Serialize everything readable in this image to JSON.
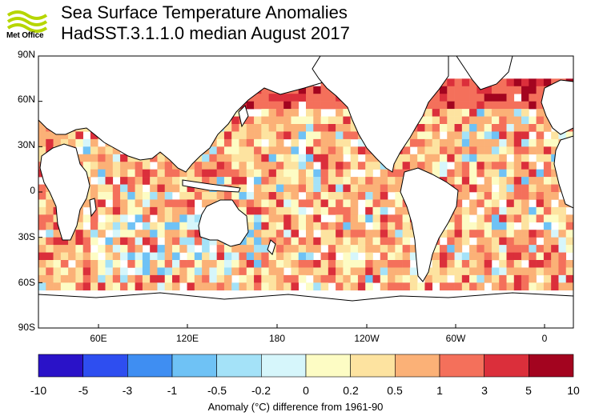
{
  "header": {
    "logo_text": "Met Office",
    "title": "Sea Surface Temperature Anomalies",
    "subtitle": "HadSST.3.1.1.0 median August 2017"
  },
  "map": {
    "lat_labels": [
      "90N",
      "60N",
      "30N",
      "0",
      "30S",
      "60S",
      "90S"
    ],
    "lon_labels": [
      "60E",
      "120E",
      "180",
      "120W",
      "60W",
      "0"
    ]
  },
  "colorbar": {
    "tick_labels": [
      "-10",
      "-5",
      "-3",
      "-1",
      "-0.5",
      "-0.2",
      "0",
      "0.2",
      "0.5",
      "1",
      "3",
      "5",
      "10"
    ],
    "colors": [
      "#2a12c8",
      "#2e4ef0",
      "#3f8ef2",
      "#6fc2f5",
      "#a4e2f8",
      "#d6f6fb",
      "#fdfcc4",
      "#fde3a0",
      "#fbb177",
      "#f4705b",
      "#db2f3b",
      "#a3041f"
    ],
    "caption": "Anomaly (°C) difference from 1961-90"
  },
  "colors": {
    "land": "#ffffff",
    "coast": "#000000",
    "no_data": "#ffffff"
  }
}
